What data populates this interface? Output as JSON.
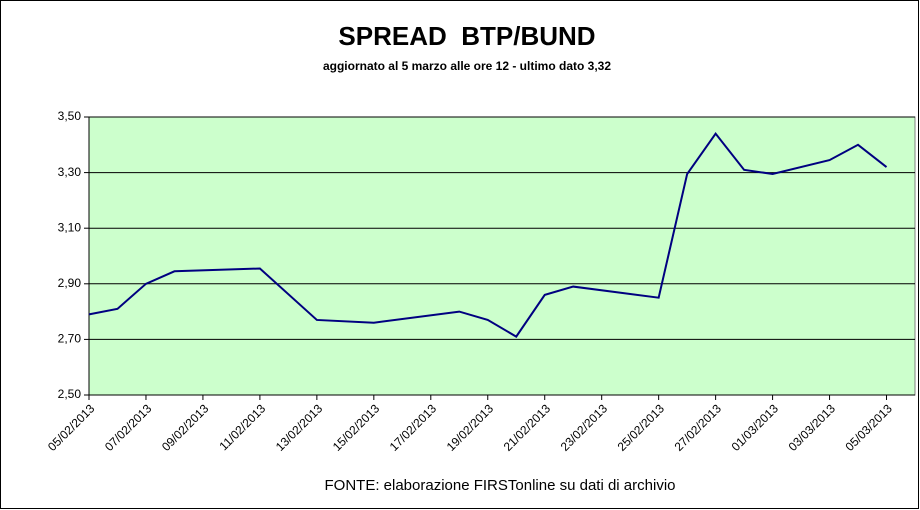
{
  "chart_data": {
    "type": "line",
    "title": "SPREAD  BTP/BUND",
    "subtitle": "aggiornato al 5 marzo alle ore 12 - ultimo dato 3,32",
    "note": "FONTE: elaborazione FIRSTonline su dati di archivio",
    "x": [
      "05/02/2013",
      "06/02/2013",
      "07/02/2013",
      "08/02/2013",
      "11/02/2013",
      "13/02/2013",
      "15/02/2013",
      "18/02/2013",
      "19/02/2013",
      "20/02/2013",
      "21/02/2013",
      "22/02/2013",
      "25/02/2013",
      "26/02/2013",
      "27/02/2013",
      "28/02/2013",
      "01/03/2013",
      "03/03/2013",
      "04/03/2013",
      "05/03/2013"
    ],
    "series": [
      {
        "name": "BTP/BUND",
        "color": "#000080",
        "values": [
          2.79,
          2.81,
          2.9,
          2.945,
          2.955,
          2.77,
          2.76,
          2.8,
          2.77,
          2.71,
          2.86,
          2.89,
          2.85,
          3.295,
          3.44,
          3.31,
          3.295,
          3.345,
          3.4,
          3.32
        ]
      }
    ],
    "xlim": [
      "05/02/2013",
      "06/03/2013"
    ],
    "xticks": [
      "05/02/2013",
      "07/02/2013",
      "09/02/2013",
      "11/02/2013",
      "13/02/2013",
      "15/02/2013",
      "17/02/2013",
      "19/02/2013",
      "21/02/2013",
      "23/02/2013",
      "25/02/2013",
      "27/02/2013",
      "01/03/2013",
      "03/03/2013",
      "05/03/2013"
    ],
    "ylim": [
      2.5,
      3.5
    ],
    "yticks": [
      {
        "value": 2.5,
        "label": "2,50"
      },
      {
        "value": 2.7,
        "label": "2,70"
      },
      {
        "value": 2.9,
        "label": "2,90"
      },
      {
        "value": 3.1,
        "label": "3,10"
      },
      {
        "value": 3.3,
        "label": "3,30"
      },
      {
        "value": 3.5,
        "label": "3,50"
      }
    ],
    "grid": true,
    "plot_background": "#ccffcc"
  }
}
